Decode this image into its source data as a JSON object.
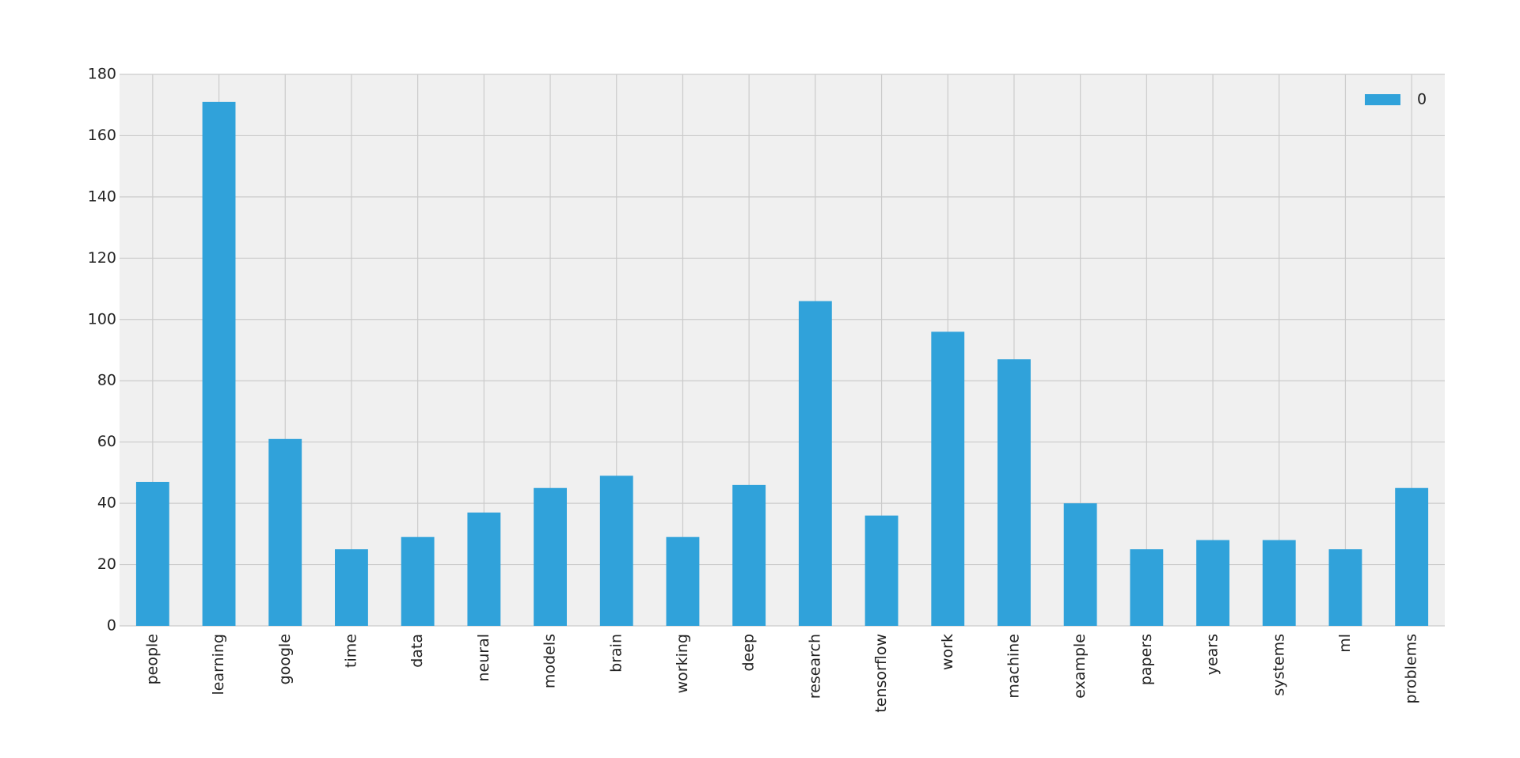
{
  "chart_data": {
    "type": "bar",
    "categories": [
      "people",
      "learning",
      "google",
      "time",
      "data",
      "neural",
      "models",
      "brain",
      "working",
      "deep",
      "research",
      "tensorflow",
      "work",
      "machine",
      "example",
      "papers",
      "years",
      "systems",
      "ml",
      "problems"
    ],
    "series": [
      {
        "name": "0",
        "color": "#30a2da",
        "values": [
          47,
          171,
          61,
          25,
          29,
          37,
          45,
          49,
          29,
          46,
          106,
          36,
          96,
          87,
          40,
          25,
          28,
          28,
          25,
          45
        ]
      }
    ],
    "ylim": [
      0,
      180
    ],
    "yticks": [
      0,
      20,
      40,
      60,
      80,
      100,
      120,
      140,
      160,
      180
    ],
    "grid": true,
    "legend": "upper right"
  }
}
